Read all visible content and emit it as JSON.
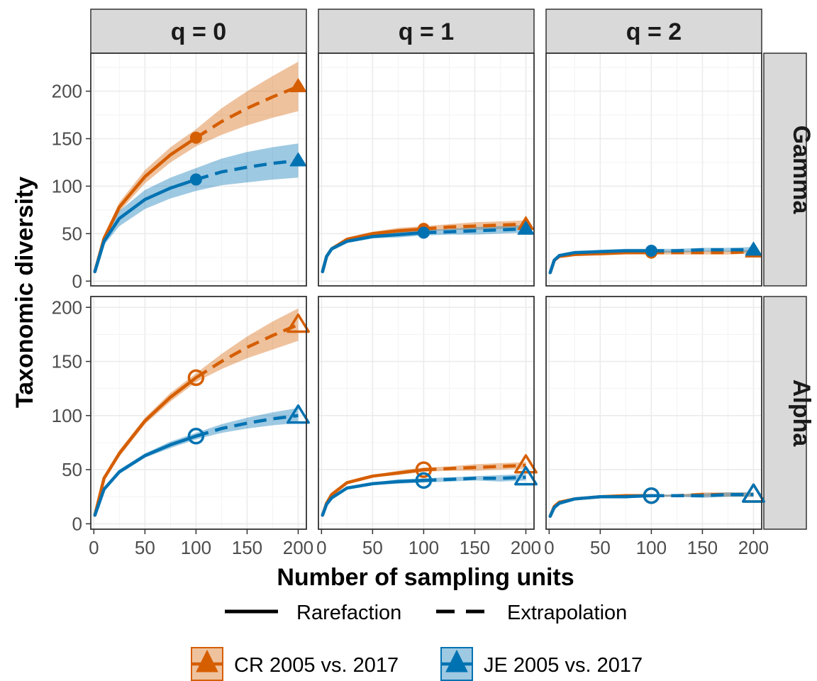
{
  "chart_data": {
    "type": "line",
    "xlabel": "Number of sampling units",
    "ylabel": "Taxonomic diversity",
    "column_strips": [
      "q = 0",
      "q = 1",
      "q = 2"
    ],
    "row_strips": [
      "Gamma",
      "Alpha"
    ],
    "xlim": [
      -3,
      208
    ],
    "xticks": [
      0,
      50,
      100,
      150,
      200
    ],
    "row_ylims": [
      [
        -5,
        240
      ],
      [
        -5,
        210
      ]
    ],
    "yticks": [
      0,
      50,
      100,
      150,
      200
    ],
    "grid": true,
    "observed_at": 100,
    "extrapolate_to": 200,
    "series": [
      {
        "name": "CR 2005 vs. 2017",
        "color": "#D55E00"
      },
      {
        "name": "JE 2005 vs. 2017",
        "color": "#0072B2"
      }
    ],
    "linetype_legend": [
      "Rarefaction",
      "Extrapolation"
    ],
    "legend_position": "bottom",
    "panels": [
      {
        "row": "Gamma",
        "col": "q = 0",
        "curves": [
          {
            "series": "CR 2005 vs. 2017",
            "x": [
              1,
              10,
              25,
              50,
              75,
              100,
              125,
              150,
              175,
              200
            ],
            "y": [
              10,
              45,
              78,
              110,
              133,
              151,
              168,
              182,
              194,
              205
            ],
            "ci_half": [
              0,
              3,
              5,
              7,
              8,
              9,
              14,
              18,
              22,
              26
            ]
          },
          {
            "series": "JE 2005 vs. 2017",
            "x": [
              1,
              10,
              25,
              50,
              75,
              100,
              125,
              150,
              175,
              200
            ],
            "y": [
              10,
              42,
              66,
              86,
              98,
              107,
              115,
              120,
              124,
              127
            ],
            "ci_half": [
              0,
              4,
              8,
              10,
              11,
              12,
              14,
              16,
              17,
              18
            ]
          }
        ]
      },
      {
        "row": "Gamma",
        "col": "q = 1",
        "curves": [
          {
            "series": "CR 2005 vs. 2017",
            "x": [
              1,
              5,
              10,
              25,
              50,
              75,
              100,
              125,
              150,
              175,
              200
            ],
            "y": [
              10,
              26,
              34,
              44,
              50,
              53,
              55,
              57,
              58,
              59,
              60
            ],
            "ci_half": [
              0,
              1,
              2,
              2,
              2,
              3,
              3,
              3,
              4,
              4,
              4
            ]
          },
          {
            "series": "JE 2005 vs. 2017",
            "x": [
              1,
              5,
              10,
              25,
              50,
              75,
              100,
              125,
              150,
              175,
              200
            ],
            "y": [
              10,
              26,
              34,
              42,
              47,
              49,
              51,
              52,
              53,
              54,
              55
            ],
            "ci_half": [
              0,
              1,
              2,
              2,
              2,
              3,
              3,
              3,
              4,
              4,
              4
            ]
          }
        ]
      },
      {
        "row": "Gamma",
        "col": "q = 2",
        "curves": [
          {
            "series": "CR 2005 vs. 2017",
            "x": [
              1,
              5,
              10,
              25,
              50,
              75,
              100,
              125,
              150,
              175,
              200
            ],
            "y": [
              9,
              22,
              26,
              28,
              29,
              30,
              30,
              30,
              30,
              30,
              31
            ],
            "ci_half": [
              0,
              1,
              1,
              1,
              2,
              2,
              2,
              2,
              2,
              2,
              2
            ]
          },
          {
            "series": "JE 2005 vs. 2017",
            "x": [
              1,
              5,
              10,
              25,
              50,
              75,
              100,
              125,
              150,
              175,
              200
            ],
            "y": [
              9,
              22,
              27,
              30,
              31,
              32,
              32,
              32,
              33,
              33,
              33
            ],
            "ci_half": [
              0,
              1,
              1,
              1,
              2,
              2,
              2,
              2,
              2,
              2,
              3
            ]
          }
        ]
      },
      {
        "row": "Alpha",
        "col": "q = 0",
        "curves": [
          {
            "series": "CR 2005 vs. 2017",
            "x": [
              1,
              10,
              25,
              50,
              75,
              100,
              125,
              150,
              175,
              200
            ],
            "y": [
              8,
              42,
              65,
              95,
              117,
              135,
              150,
              163,
              174,
              184
            ],
            "ci_half": [
              0,
              2,
              3,
              3,
              4,
              4,
              7,
              10,
              13,
              15
            ]
          },
          {
            "series": "JE 2005 vs. 2017",
            "x": [
              1,
              10,
              25,
              50,
              75,
              100,
              125,
              150,
              175,
              200
            ],
            "y": [
              8,
              32,
              48,
              63,
              73,
              81,
              88,
              93,
              97,
              100
            ],
            "ci_half": [
              0,
              2,
              2,
              2,
              3,
              3,
              4,
              5,
              6,
              7
            ]
          }
        ]
      },
      {
        "row": "Alpha",
        "col": "q = 1",
        "curves": [
          {
            "series": "CR 2005 vs. 2017",
            "x": [
              1,
              5,
              10,
              25,
              50,
              75,
              100,
              125,
              150,
              175,
              200
            ],
            "y": [
              8,
              19,
              27,
              38,
              44,
              47,
              50,
              51,
              52,
              53,
              54
            ],
            "ci_half": [
              0,
              1,
              1,
              1,
              1,
              2,
              2,
              2,
              3,
              3,
              3
            ]
          },
          {
            "series": "JE 2005 vs. 2017",
            "x": [
              1,
              5,
              10,
              25,
              50,
              75,
              100,
              125,
              150,
              175,
              200
            ],
            "y": [
              8,
              18,
              24,
              33,
              37,
              39,
              40,
              41,
              42,
              42,
              43
            ],
            "ci_half": [
              0,
              1,
              1,
              1,
              1,
              2,
              2,
              2,
              2,
              3,
              3
            ]
          }
        ]
      },
      {
        "row": "Alpha",
        "col": "q = 2",
        "curves": [
          {
            "series": "CR 2005 vs. 2017",
            "x": [
              1,
              5,
              10,
              25,
              50,
              75,
              100,
              125,
              150,
              175,
              200
            ],
            "y": [
              7,
              16,
              20,
              23,
              25,
              26,
              26,
              26,
              27,
              27,
              27
            ],
            "ci_half": [
              0,
              1,
              1,
              1,
              1,
              1,
              1,
              1,
              2,
              2,
              2
            ]
          },
          {
            "series": "JE 2005 vs. 2017",
            "x": [
              1,
              5,
              10,
              25,
              50,
              75,
              100,
              125,
              150,
              175,
              200
            ],
            "y": [
              7,
              15,
              19,
              23,
              25,
              25,
              26,
              26,
              26,
              27,
              27
            ],
            "ci_half": [
              0,
              1,
              1,
              1,
              1,
              1,
              1,
              1,
              2,
              2,
              2
            ]
          }
        ]
      }
    ]
  }
}
